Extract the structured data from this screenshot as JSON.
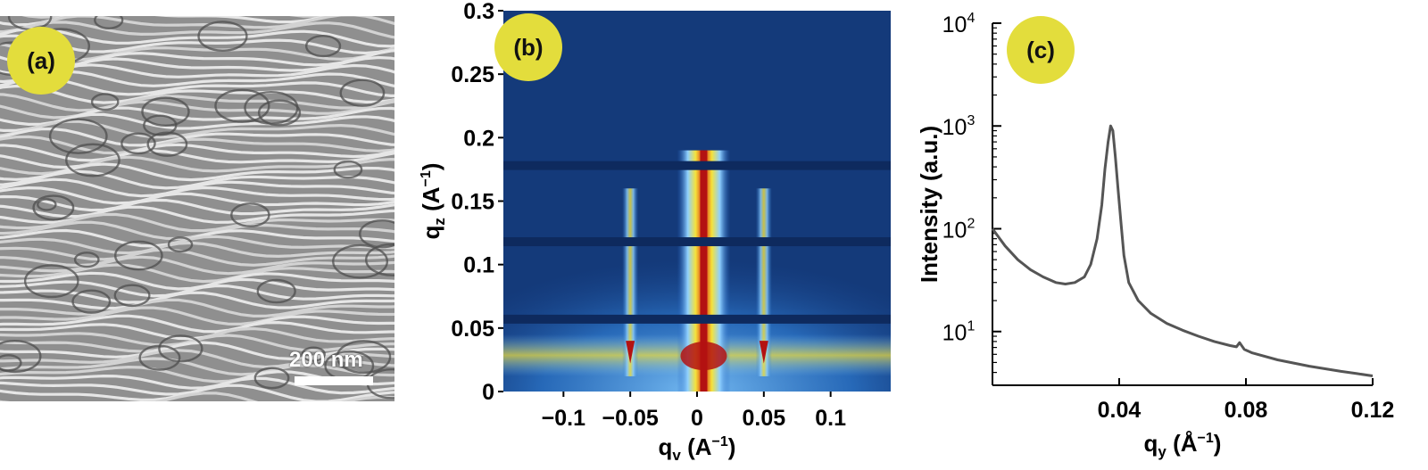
{
  "panels": {
    "a": {
      "label": "(a)",
      "scale_bar": "200 nm"
    },
    "b": {
      "label": "(b)"
    },
    "c": {
      "label": "(c)"
    }
  },
  "chart_data": [
    {
      "type": "heatmap",
      "panel": "(b)",
      "xlabel_main": "q",
      "xlabel_sub": "v",
      "xlabel_unit": "(A",
      "xlabel_exp": "−1",
      "xlabel_close": ")",
      "ylabel_main": "q",
      "ylabel_sub": "z",
      "ylabel_unit": "(A",
      "ylabel_exp": "−1",
      "ylabel_close": ")",
      "xlim": [
        -0.145,
        0.145
      ],
      "ylim": [
        0,
        0.3
      ],
      "x_ticks": [
        -0.1,
        -0.05,
        0,
        0.05,
        0.1
      ],
      "x_tick_labels": [
        "−0.1",
        "−0.05",
        "0",
        "0.05",
        "0.1"
      ],
      "y_ticks": [
        0,
        0.05,
        0.1,
        0.15,
        0.2,
        0.25,
        0.3
      ],
      "y_tick_labels": [
        "0",
        "0.05",
        "0.1",
        "0.15",
        "0.2",
        "0.25",
        "0.3"
      ],
      "detector_gaps_qz": [
        0.057,
        0.118,
        0.178
      ],
      "specular_qy": 0.005,
      "bragg_rods_qy": [
        -0.05,
        0.05
      ],
      "colors": {
        "background": "#143a7a",
        "low": "#1f5fbf",
        "mid": "#8fd0ff",
        "high": "#f5e23a",
        "peak": "#b31212"
      }
    },
    {
      "type": "line",
      "panel": "(c)",
      "xlabel_main": "q",
      "xlabel_sub": "y",
      "xlabel_unit": "(Å",
      "xlabel_exp": "−1",
      "xlabel_close": ")",
      "ylabel": "Intensity (a.u.)",
      "xlim": [
        0.0,
        0.12
      ],
      "y_scale": "log",
      "ylim": [
        3,
        10000
      ],
      "x_ticks": [
        0.04,
        0.08,
        0.12
      ],
      "x_tick_labels": [
        "0.04",
        "0.08",
        "0.12"
      ],
      "y_ticks": [
        10,
        100,
        1000,
        10000
      ],
      "y_tick_base": [
        "10",
        "10",
        "10",
        "10"
      ],
      "y_tick_exp": [
        "1",
        "2",
        "3",
        "4"
      ],
      "series": [
        {
          "color": "#555555",
          "x": [
            0.0,
            0.004,
            0.008,
            0.012,
            0.016,
            0.02,
            0.023,
            0.026,
            0.029,
            0.031,
            0.033,
            0.0345,
            0.0355,
            0.0365,
            0.0373,
            0.038,
            0.0388,
            0.0396,
            0.0405,
            0.0415,
            0.043,
            0.046,
            0.05,
            0.055,
            0.06,
            0.065,
            0.07,
            0.075,
            0.077,
            0.078,
            0.0795,
            0.082,
            0.09,
            0.1,
            0.11,
            0.115,
            0.12
          ],
          "y": [
            100,
            68,
            50,
            40,
            34,
            30,
            29,
            30,
            34,
            45,
            80,
            170,
            380,
            700,
            1000,
            900,
            500,
            250,
            120,
            55,
            30,
            20,
            15,
            12,
            10.3,
            9,
            8,
            7.3,
            7.1,
            7.8,
            6.7,
            6.2,
            5.3,
            4.6,
            4.1,
            3.9,
            3.7
          ]
        }
      ]
    }
  ]
}
